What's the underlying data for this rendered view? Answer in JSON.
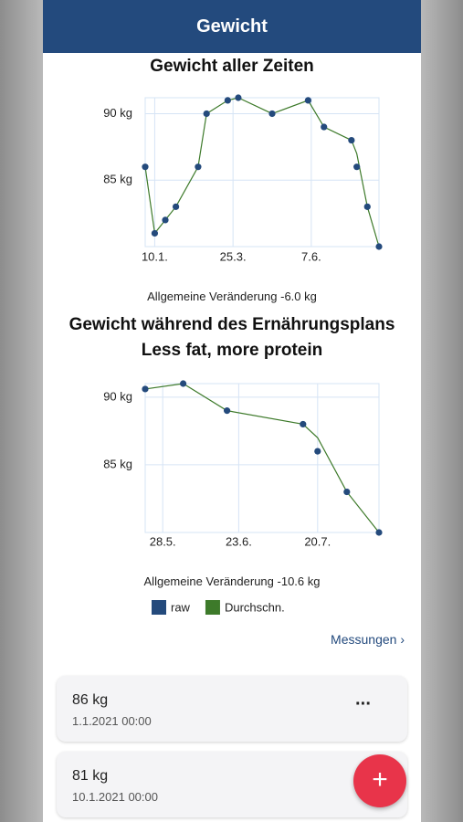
{
  "header": {
    "title": "Gewicht"
  },
  "chart_data": [
    {
      "type": "line",
      "title": "Gewicht aller Zeiten",
      "note": "Allgemeine Veränderung -6.0 kg",
      "x": [
        "1.1.",
        "10.1.",
        "20.1.",
        "30.1.",
        "20.2.",
        "28.2.",
        "20.3.",
        "30.3.",
        "1.5.",
        "4.6.",
        "19.6.",
        "15.7.",
        "20.7.",
        "30.7.",
        "10.8."
      ],
      "series": [
        {
          "name": "raw",
          "color": "#244a7c",
          "mode": "markers",
          "values": [
            86,
            81,
            82,
            83,
            86,
            90,
            91,
            91.2,
            90,
            91,
            89,
            88,
            86,
            83,
            80
          ]
        },
        {
          "name": "Durchschn.",
          "color": "#3d7a2a",
          "mode": "lines",
          "values": [
            86,
            81,
            82,
            83,
            86,
            90,
            91,
            91.2,
            90,
            91,
            89,
            88,
            87,
            83,
            80
          ]
        }
      ],
      "xlim": [
        "1.1.",
        "10.8."
      ],
      "xticks": [
        "10.1.",
        "25.3.",
        "7.6."
      ],
      "ylim": [
        80,
        91.2
      ],
      "yticks": [
        {
          "value": 85,
          "label": "85 kg"
        },
        {
          "value": 90,
          "label": "90 kg"
        }
      ],
      "grid": true,
      "legend": false
    },
    {
      "type": "line",
      "title": "Gewicht während des Ernährungsplans Less fat, more protein",
      "note": "Allgemeine Veränderung -10.6 kg",
      "x": [
        "22.5.",
        "4.6.",
        "19.6.",
        "15.7.",
        "20.7.",
        "30.7.",
        "10.8."
      ],
      "series": [
        {
          "name": "raw",
          "color": "#244a7c",
          "mode": "markers",
          "values": [
            90.6,
            91,
            89,
            88,
            86,
            83,
            80
          ]
        },
        {
          "name": "Durchschn.",
          "color": "#3d7a2a",
          "mode": "lines",
          "values": [
            90.6,
            91,
            89,
            88,
            87,
            83,
            80
          ]
        }
      ],
      "xlim": [
        "22.5.",
        "10.8."
      ],
      "xticks": [
        "28.5.",
        "23.6.",
        "20.7."
      ],
      "ylim": [
        80,
        91
      ],
      "yticks": [
        {
          "value": 85,
          "label": "85 kg"
        },
        {
          "value": 90,
          "label": "90 kg"
        }
      ],
      "grid": true,
      "legend": true
    }
  ],
  "link": "Messungen",
  "measurements": [
    {
      "weight": "86 kg",
      "date": "1.1.2021 00:00"
    },
    {
      "weight": "81 kg",
      "date": "10.1.2021 00:00"
    }
  ]
}
